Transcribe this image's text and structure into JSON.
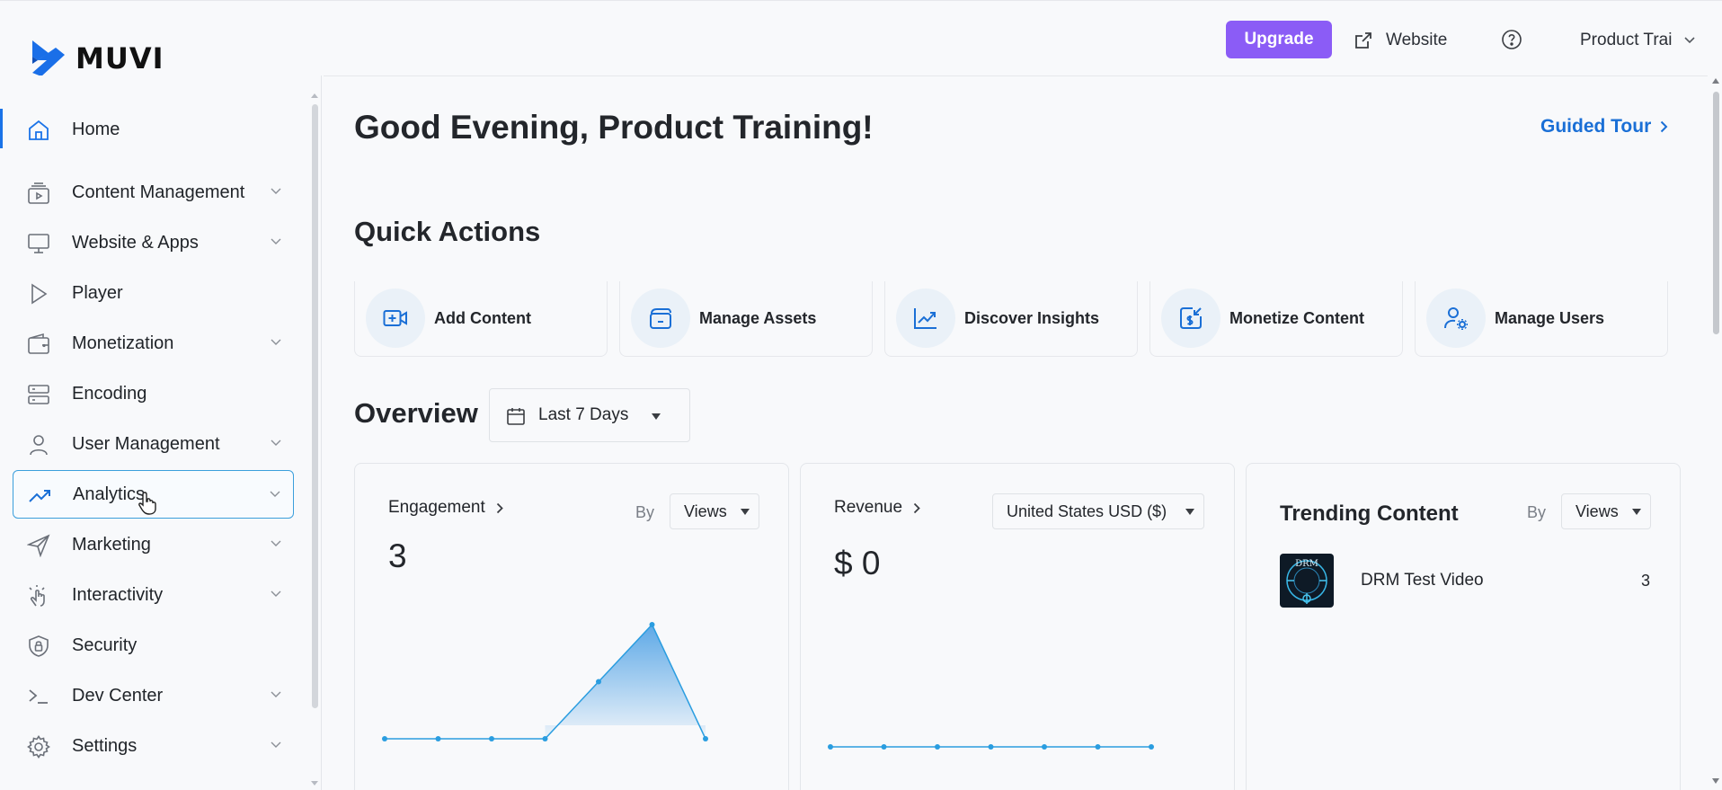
{
  "header": {
    "logo_text": "MUVI",
    "upgrade_label": "Upgrade",
    "website_label": "Website",
    "profile_label": "Product Trai"
  },
  "sidebar": {
    "items": [
      {
        "label": "Home",
        "icon": "home-icon",
        "expandable": false
      },
      {
        "label": "Content Management",
        "icon": "content-management-icon",
        "expandable": true
      },
      {
        "label": "Website & Apps",
        "icon": "monitor-icon",
        "expandable": true
      },
      {
        "label": "Player",
        "icon": "play-icon",
        "expandable": false
      },
      {
        "label": "Monetization",
        "icon": "wallet-icon",
        "expandable": true
      },
      {
        "label": "Encoding",
        "icon": "server-icon",
        "expandable": false
      },
      {
        "label": "User Management",
        "icon": "user-icon",
        "expandable": true
      },
      {
        "label": "Analytics",
        "icon": "trend-up-icon",
        "expandable": true
      },
      {
        "label": "Marketing",
        "icon": "send-icon",
        "expandable": true
      },
      {
        "label": "Interactivity",
        "icon": "tap-icon",
        "expandable": true
      },
      {
        "label": "Security",
        "icon": "shield-lock-icon",
        "expandable": false
      },
      {
        "label": "Dev Center",
        "icon": "terminal-icon",
        "expandable": true
      },
      {
        "label": "Settings",
        "icon": "gear-icon",
        "expandable": true
      }
    ]
  },
  "main": {
    "greeting": "Good Evening, Product Training!",
    "guided_tour_label": "Guided Tour",
    "quick_actions_title": "Quick Actions",
    "quick_actions": [
      {
        "label": "Add Content",
        "icon": "video-add-icon"
      },
      {
        "label": "Manage Assets",
        "icon": "assets-icon"
      },
      {
        "label": "Discover Insights",
        "icon": "chart-line-icon"
      },
      {
        "label": "Monetize Content",
        "icon": "monetize-icon"
      },
      {
        "label": "Manage Users",
        "icon": "user-gear-icon"
      }
    ],
    "overview_title": "Overview",
    "range_label": "Last 7 Days",
    "engagement": {
      "title": "Engagement",
      "by_label": "By",
      "select_value": "Views",
      "total": "3"
    },
    "revenue": {
      "title": "Revenue",
      "currency_select": "United States USD ($)",
      "total": "$ 0"
    },
    "trending": {
      "title": "Trending Content",
      "by_label": "By",
      "select_value": "Views",
      "items": [
        {
          "name": "DRM Test Video",
          "count": "3",
          "thumb_text": "DRM"
        }
      ]
    }
  },
  "colors": {
    "accent_blue": "#1a73e8",
    "upgrade_purple": "#8b5cf6",
    "chart_line": "#2a9de0"
  },
  "chart_data": [
    {
      "type": "area",
      "title": "Engagement",
      "xlabel": "",
      "ylabel": "",
      "x": [
        1,
        2,
        3,
        4,
        5,
        6,
        7
      ],
      "values": [
        0,
        0,
        0,
        0,
        1,
        2,
        0
      ]
    },
    {
      "type": "line",
      "title": "Revenue",
      "xlabel": "",
      "ylabel": "",
      "x": [
        1,
        2,
        3,
        4,
        5,
        6,
        7
      ],
      "values": [
        0,
        0,
        0,
        0,
        0,
        0,
        0
      ]
    }
  ]
}
